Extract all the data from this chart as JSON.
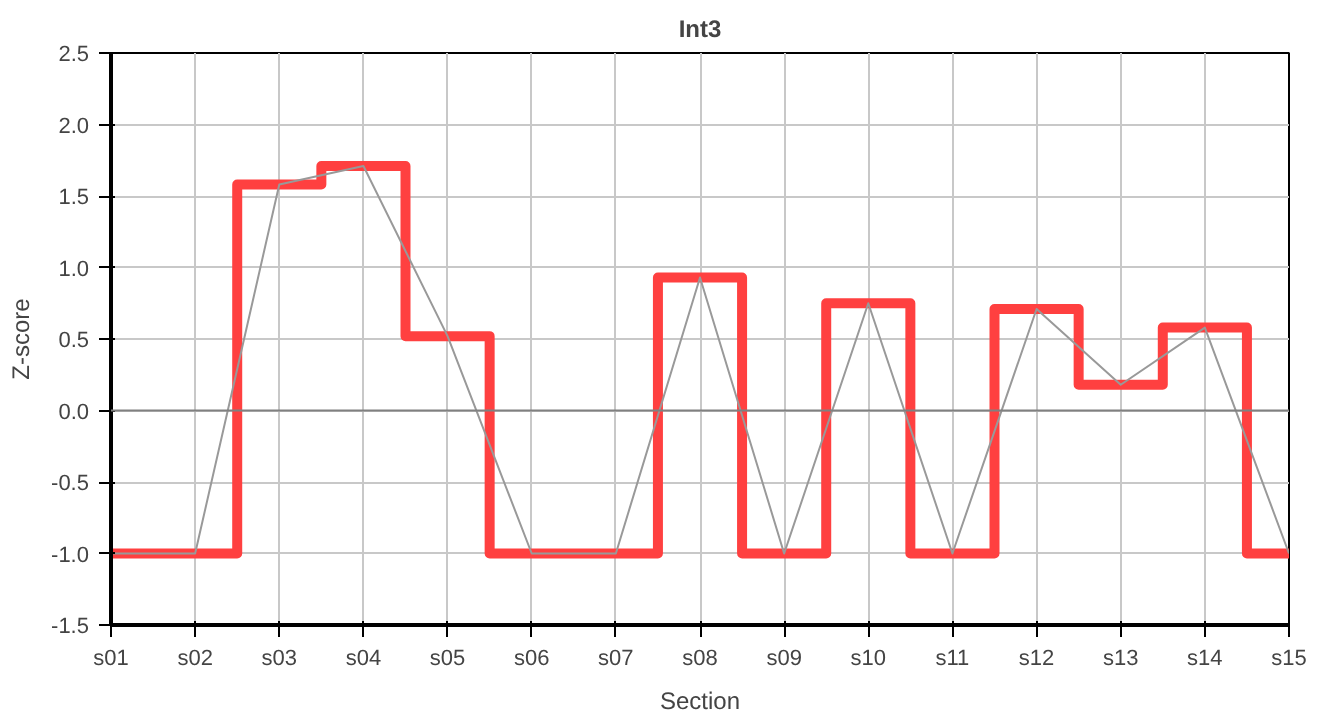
{
  "chart_data": {
    "type": "step",
    "title": "Int3",
    "xlabel": "Section",
    "ylabel": "Z-score",
    "categories": [
      "s01",
      "s02",
      "s03",
      "s04",
      "s05",
      "s06",
      "s07",
      "s08",
      "s09",
      "s10",
      "s11",
      "s12",
      "s13",
      "s14",
      "s15"
    ],
    "series": [
      {
        "color": "#ff4040",
        "values": [
          -1.0,
          -1.0,
          1.58,
          1.71,
          0.52,
          -1.0,
          -1.0,
          0.93,
          -1.0,
          0.75,
          -1.0,
          0.71,
          0.18,
          0.58,
          -1.0
        ]
      },
      {
        "type": "line",
        "color": "#999999",
        "values": [
          -1.0,
          -1.0,
          1.58,
          1.71,
          0.52,
          -1.0,
          -1.0,
          0.93,
          -1.0,
          0.75,
          -1.0,
          0.71,
          0.18,
          0.58,
          -1.0
        ]
      }
    ],
    "ylim": [
      -1.5,
      2.5
    ],
    "yticks": [
      {
        "value": -1.5,
        "label": "-1.5"
      },
      {
        "value": -1.0,
        "label": "-1.0"
      },
      {
        "value": -0.5,
        "label": "-0.5"
      },
      {
        "value": 0.0,
        "label": "0.0"
      },
      {
        "value": 0.5,
        "label": "0.5"
      },
      {
        "value": 1.0,
        "label": "1.0"
      },
      {
        "value": 1.5,
        "label": "1.5"
      },
      {
        "value": 2.0,
        "label": "2.0"
      },
      {
        "value": 2.5,
        "label": "2.5"
      }
    ],
    "ref_lines": [
      {
        "axis": "y",
        "value": 0,
        "color": "#808080"
      }
    ],
    "grid": true,
    "marker": "none",
    "line_style": "solid"
  }
}
